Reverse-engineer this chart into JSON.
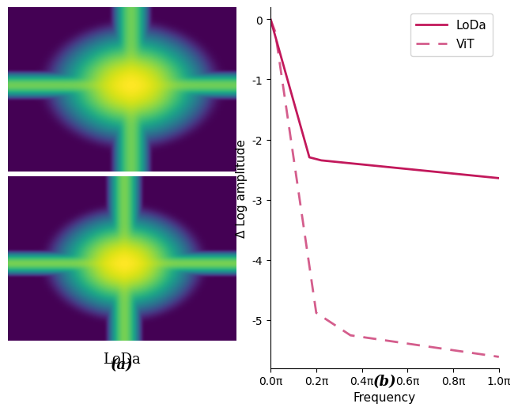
{
  "line_color": "#c2185b",
  "vit_line_color": "#e91e8c",
  "ylabel": "Δ Log amplitude",
  "xlabel": "Frequency",
  "legend_loda": "LoDa",
  "legend_vit": "ViT",
  "label_a": "(a)",
  "label_b": "(b)",
  "label_vit": "ViT",
  "label_loda": "LoDa",
  "xlim": [
    0.0,
    1.0
  ],
  "ylim": [
    -5.8,
    0.2
  ],
  "yticks": [
    0.0,
    -1.0,
    -2.0,
    -3.0,
    -4.0,
    -5.0
  ],
  "xtick_vals": [
    0.0,
    0.2,
    0.4,
    0.6,
    0.8,
    1.0
  ],
  "xtick_labels": [
    "0.0π",
    "0.2π",
    "0.4π",
    "0.6π",
    "0.8π",
    "1.0π"
  ]
}
